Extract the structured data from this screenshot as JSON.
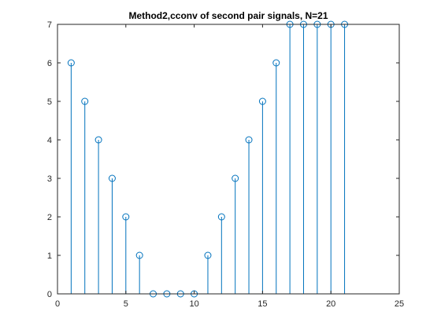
{
  "chart_data": {
    "type": "stem",
    "title": "Method2,cconv of second pair signals, N=21",
    "xlabel": "",
    "ylabel": "",
    "xlim": [
      0,
      25
    ],
    "ylim": [
      0,
      7
    ],
    "xticks": [
      0,
      5,
      10,
      15,
      20,
      25
    ],
    "yticks": [
      0,
      1,
      2,
      3,
      4,
      5,
      6,
      7
    ],
    "grid": false,
    "series": [
      {
        "color": "#0072BD",
        "x": [
          1,
          2,
          3,
          4,
          5,
          6,
          7,
          8,
          9,
          10,
          11,
          12,
          13,
          14,
          15,
          16,
          17,
          18,
          19,
          20,
          21
        ],
        "y": [
          6,
          5,
          4,
          3,
          2,
          1,
          0,
          0,
          0,
          0,
          1,
          2,
          3,
          4,
          5,
          6,
          7,
          7,
          7,
          7,
          7
        ]
      }
    ]
  }
}
